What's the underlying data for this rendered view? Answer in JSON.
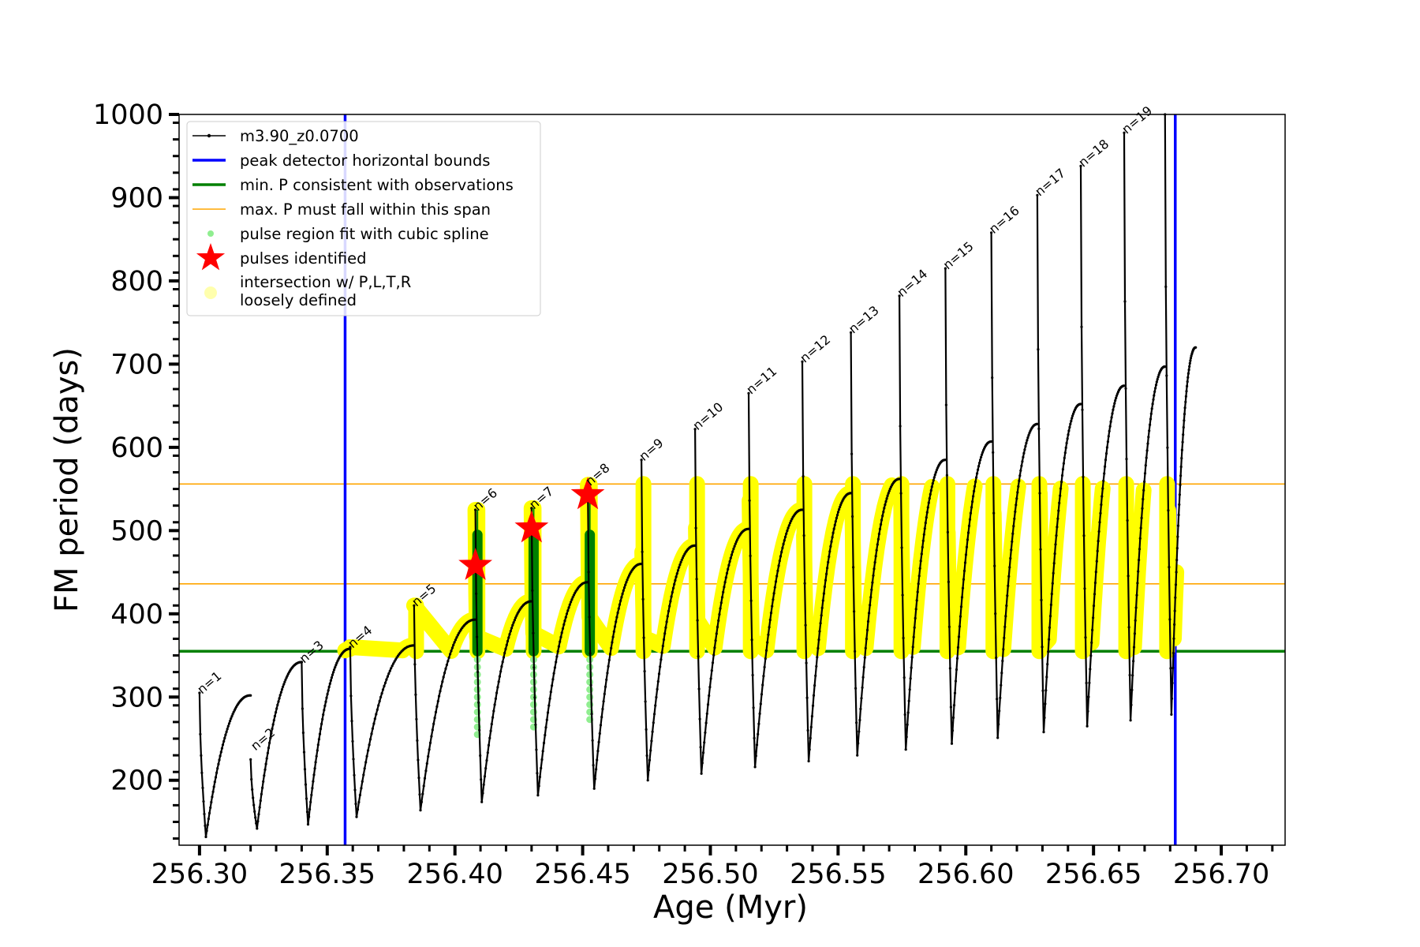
{
  "chart_data": {
    "type": "line",
    "xlabel": "Age (Myr)",
    "ylabel": "FM period (days)",
    "xlim": [
      256.292,
      256.725
    ],
    "ylim": [
      122,
      1000
    ],
    "xticks": [
      "256.30",
      "256.35",
      "256.40",
      "256.45",
      "256.50",
      "256.55",
      "256.60",
      "256.65",
      "256.70"
    ],
    "xtick_values": [
      256.3,
      256.35,
      256.4,
      256.45,
      256.5,
      256.55,
      256.6,
      256.65,
      256.7
    ],
    "yticks": [
      "200",
      "300",
      "400",
      "500",
      "600",
      "700",
      "800",
      "900",
      "1000"
    ],
    "ytick_values": [
      200,
      300,
      400,
      500,
      600,
      700,
      800,
      900,
      1000
    ],
    "grid": false,
    "legend_position": "top-left",
    "legend": [
      {
        "label": "m3.90_z0.0700",
        "marker": "line-dot",
        "color": "#000000"
      },
      {
        "label": "peak detector horizontal bounds",
        "marker": "line",
        "color": "#0000ff"
      },
      {
        "label": "min. P consistent with observations",
        "marker": "line",
        "color": "#008000"
      },
      {
        "label": "max. P must fall within this span",
        "marker": "thin-line",
        "color": "#ffa500"
      },
      {
        "label": "pulse region fit with cubic spline",
        "marker": "dot",
        "color": "#90ee90"
      },
      {
        "label": "pulses identified",
        "marker": "star",
        "color": "#ff0000"
      },
      {
        "label": "intersection w/ P,L,T,R",
        "label2": "loosely defined",
        "marker": "circle",
        "color": "#ffff99"
      }
    ],
    "vertical_bounds_x": [
      256.357,
      256.682
    ],
    "min_period": 355,
    "max_period_span": [
      436,
      556
    ],
    "cycle_peak_ages": [
      256.3,
      256.32,
      256.34,
      256.359,
      256.384,
      256.408,
      256.43,
      256.452,
      256.473,
      256.494,
      256.515,
      256.536,
      256.555,
      256.574,
      256.592,
      256.61,
      256.628,
      256.645,
      256.662,
      256.678
    ],
    "cycle_end_ages": [
      256.69
    ],
    "cycle_peak_periods": [
      305,
      225,
      342,
      360,
      410,
      525,
      527,
      555,
      585,
      622,
      665,
      703,
      738,
      782,
      815,
      858,
      903,
      938,
      978,
      1000
    ],
    "cycle_min_periods": [
      132,
      142,
      147,
      156,
      164,
      174,
      182,
      190,
      200,
      208,
      216,
      223,
      230,
      237,
      244,
      251,
      258,
      265,
      272,
      279
    ],
    "cycle_end_periods": [
      302,
      342,
      358,
      362,
      393,
      415,
      438,
      460,
      482,
      502,
      525,
      545,
      562,
      585,
      607,
      628,
      652,
      674,
      697,
      720,
      743
    ],
    "pulse_labels": [
      "n=1",
      "n=2",
      "n=3",
      "n=4",
      "n=5",
      "n=6",
      "n=7",
      "n=8",
      "n=9",
      "n=10",
      "n=11",
      "n=12",
      "n=13",
      "n=14",
      "n=15",
      "n=16",
      "n=17",
      "n=18",
      "n=19"
    ],
    "pulses_identified": [
      {
        "label": "n=6",
        "x": 256.408,
        "y": 458
      },
      {
        "label": "n=7",
        "x": 256.43,
        "y": 503
      },
      {
        "label": "n=8",
        "x": 256.452,
        "y": 543
      }
    ],
    "pulse_spline_cycles": [
      6,
      7,
      8
    ],
    "colors": {
      "track": "#000000",
      "bounds": "#0000ff",
      "min_p": "#008000",
      "span": "#ffa500",
      "spline": "#90ee90",
      "pulse_fit": "#008000",
      "star": "#ff0000",
      "intersection": "#ffff00"
    }
  }
}
